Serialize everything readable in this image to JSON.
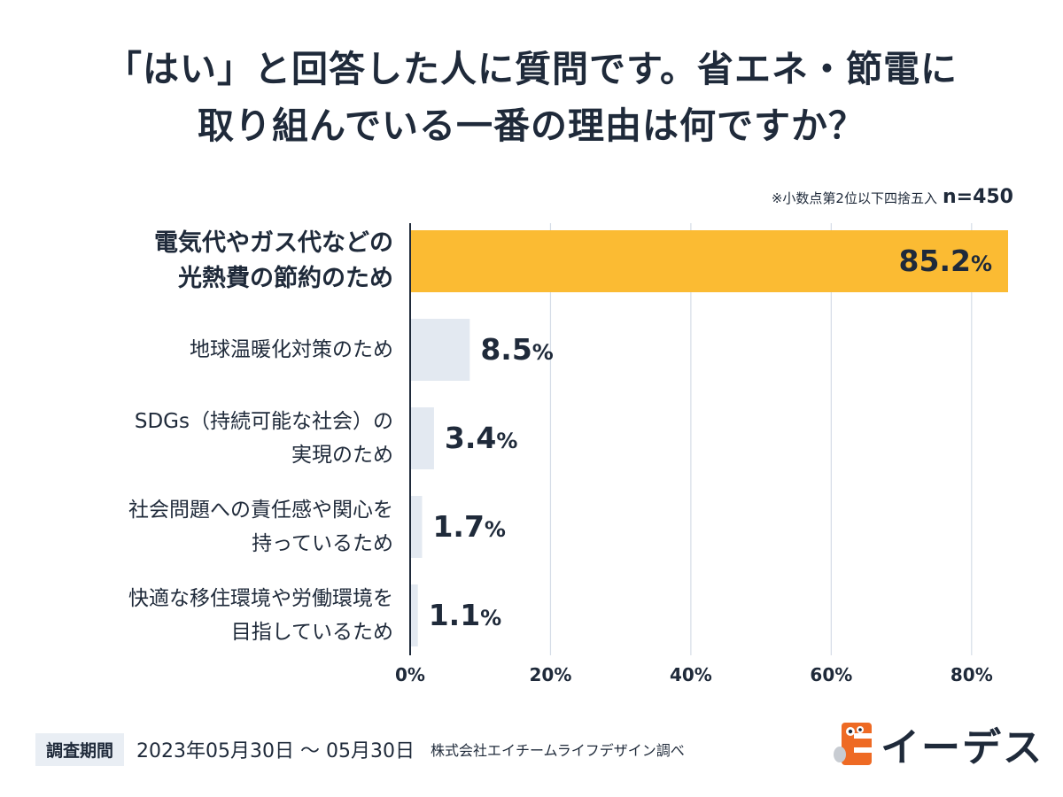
{
  "title": {
    "line1": "「はい」と回答した人に質問です。省エネ・節電に",
    "line2": "取り組んでいる一番の理由は何ですか？"
  },
  "note": {
    "text": "※小数点第2位以下四捨五入",
    "n": "n=450"
  },
  "chart_data": {
    "type": "bar",
    "orientation": "horizontal",
    "categories": [
      [
        "電気代やガス代などの",
        "光熱費の節約のため"
      ],
      [
        "地球温暖化対策のため"
      ],
      [
        "SDGs（持続可能な社会）の",
        "実現のため"
      ],
      [
        "社会問題への責任感や関心を",
        "持っているため"
      ],
      [
        "快適な移住環境や労働環境を",
        "目指しているため"
      ]
    ],
    "values": [
      85.2,
      8.5,
      3.4,
      1.7,
      1.1
    ],
    "value_labels": [
      "85.2",
      "8.5",
      "3.4",
      "1.7",
      "1.1"
    ],
    "unit": "%",
    "xlim": [
      0,
      85.2
    ],
    "xticks": [
      0,
      20,
      40,
      60,
      80
    ],
    "xtick_labels": [
      "0%",
      "20%",
      "40%",
      "60%",
      "80%"
    ],
    "colors": {
      "highlight": "#fbbb33",
      "other": "#e3e9f1",
      "grid": "#d5dde7",
      "axis": "#1f2a3a"
    },
    "grid": true
  },
  "footer": {
    "period_label": "調査期間",
    "period_value": "2023年05月30日 ～ 05月30日",
    "source": "株式会社エイチームライフデザイン調べ"
  },
  "logo": {
    "text": "イーデス",
    "color": "#ee6a24"
  }
}
